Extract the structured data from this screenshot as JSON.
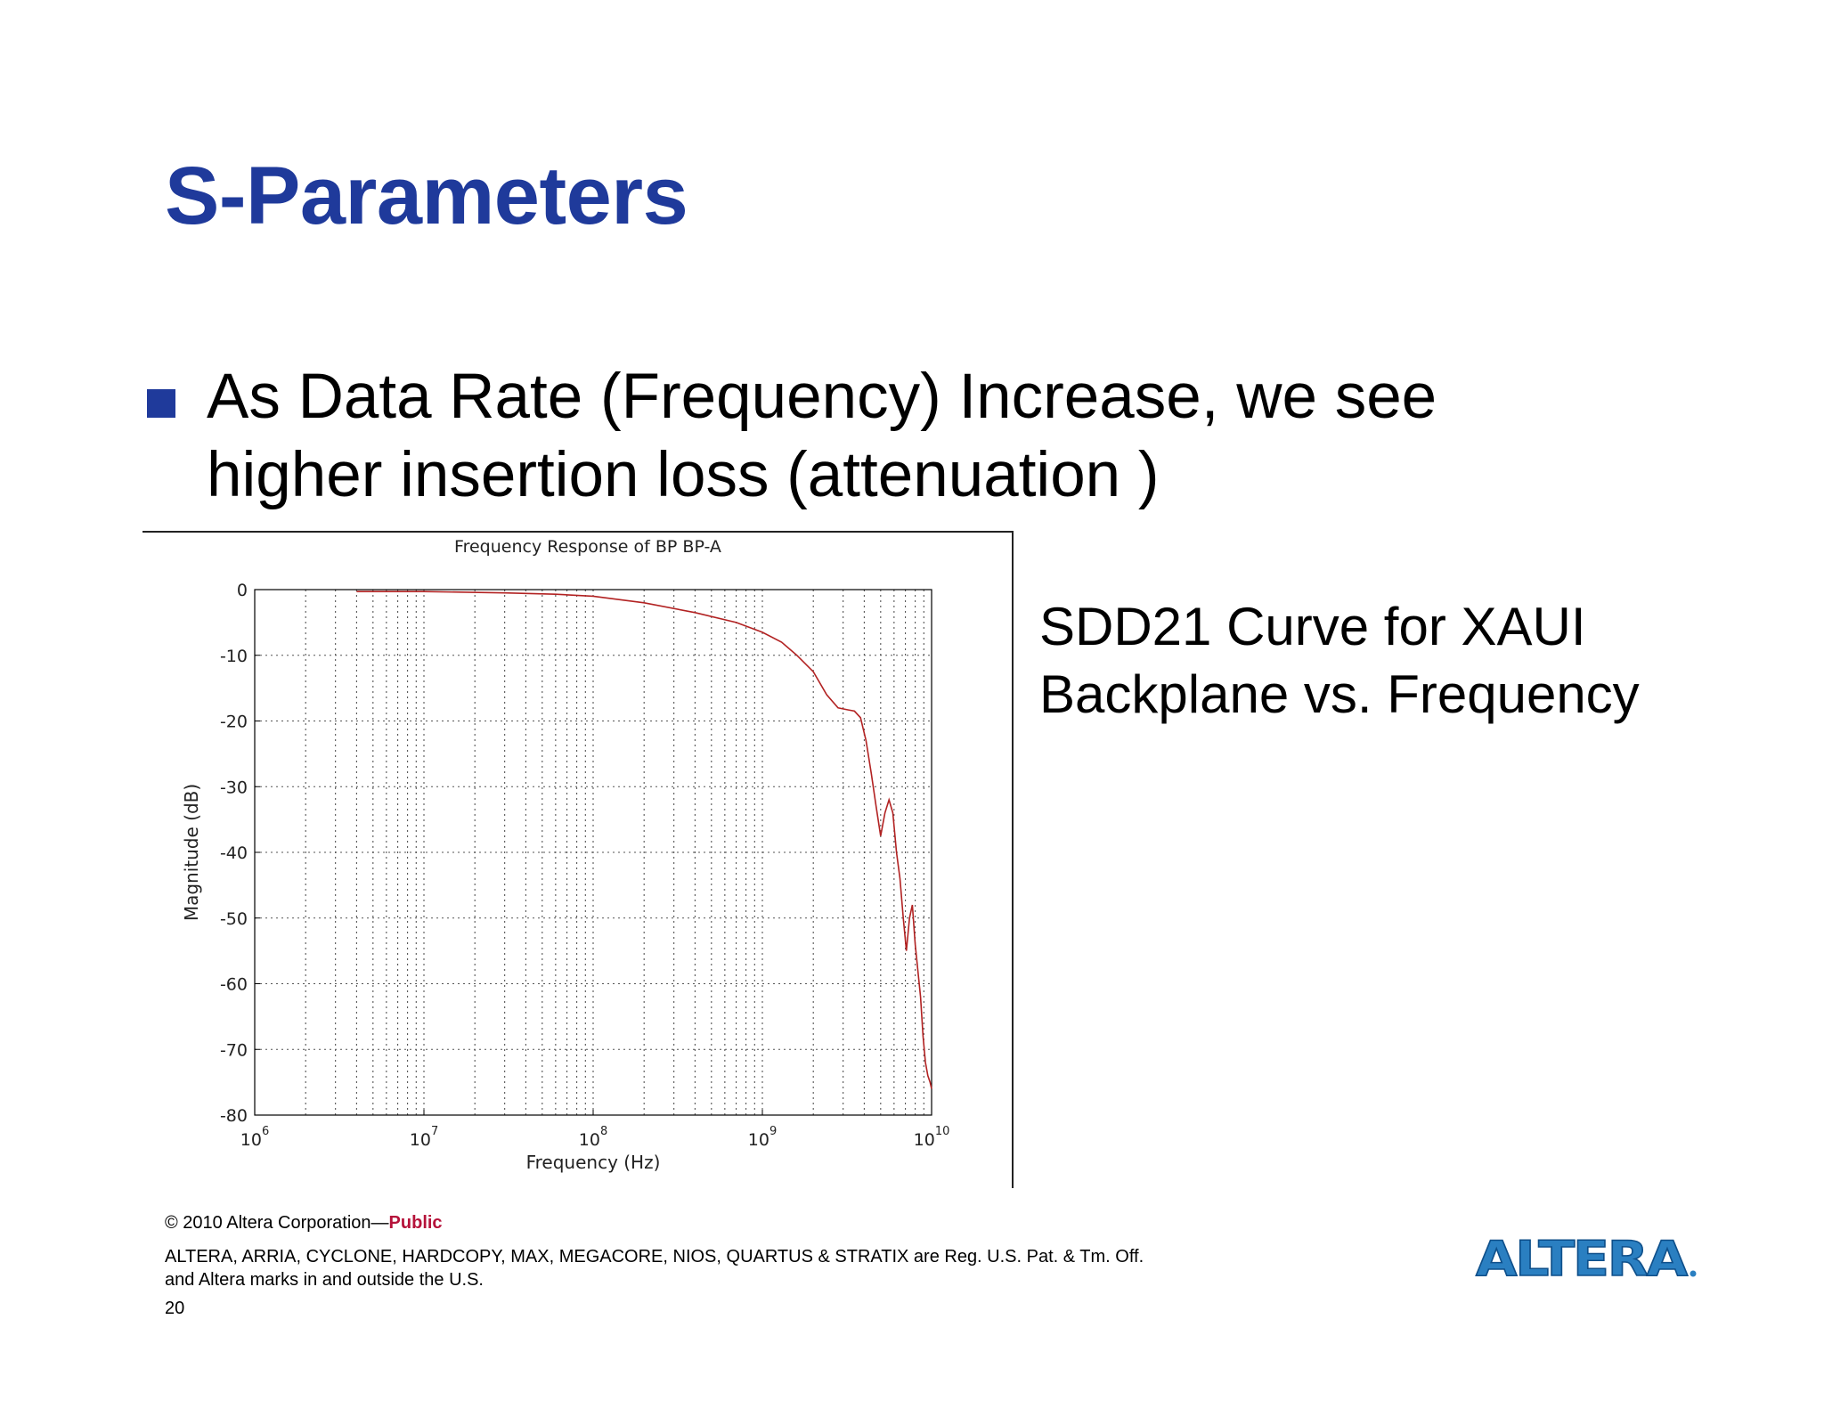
{
  "slide": {
    "title": "S-Parameters",
    "bullet_line1": "As Data Rate (Frequency) Increase, we see",
    "bullet_line2": "higher insertion loss (attenuation )",
    "caption_line1": "SDD21 Curve for XAUI",
    "caption_line2": "Backplane vs. Frequency"
  },
  "footer": {
    "copyright": "© 2010 Altera Corporation—",
    "public_label": "Public",
    "trademark_line1": "ALTERA, ARRIA, CYCLONE, HARDCOPY, MAX, MEGACORE, NIOS, QUARTUS & STRATIX are Reg. U.S. Pat. & Tm. Off.",
    "trademark_line2": "and Altera marks in and outside the U.S.",
    "page_number": "20"
  },
  "logo": {
    "text": "ALTERA",
    "color": "#2a7fc1"
  },
  "chart_data": {
    "type": "line",
    "title": "Frequency Response of BP BP-A",
    "xlabel": "Frequency (Hz)",
    "ylabel": "Magnitude (dB)",
    "x_scale": "log",
    "xlim": [
      1000000,
      10000000000
    ],
    "ylim": [
      -80,
      0
    ],
    "x_ticks": [
      {
        "base": "10",
        "exp": "6",
        "value": 1000000
      },
      {
        "base": "10",
        "exp": "7",
        "value": 10000000
      },
      {
        "base": "10",
        "exp": "8",
        "value": 100000000
      },
      {
        "base": "10",
        "exp": "9",
        "value": 1000000000
      },
      {
        "base": "10",
        "exp": "10",
        "value": 10000000000
      }
    ],
    "y_ticks": [
      "0",
      "-10",
      "-20",
      "-30",
      "-40",
      "-50",
      "-60",
      "-70",
      "-80"
    ],
    "grid": true,
    "line_color": "#b22222",
    "series": [
      {
        "x": [
          4000000,
          10000000,
          30000000,
          60000000,
          100000000,
          200000000,
          400000000,
          700000000,
          1000000000,
          1300000000,
          1600000000,
          2000000000,
          2400000000,
          2800000000,
          3200000000,
          3500000000,
          3800000000,
          4100000000,
          4400000000,
          4700000000,
          5000000000,
          5300000000,
          5600000000,
          5900000000,
          6200000000,
          6500000000,
          6800000000,
          7100000000,
          7400000000,
          7700000000,
          8000000000,
          8300000000,
          8600000000,
          8900000000,
          9200000000,
          9500000000,
          9800000000,
          10000000000
        ],
        "y": [
          -0.3,
          -0.3,
          -0.5,
          -0.7,
          -1,
          -2,
          -3.5,
          -5,
          -6.5,
          -8,
          -10,
          -12.5,
          -16,
          -18,
          -18.3,
          -18.5,
          -19.5,
          -23,
          -28,
          -33,
          -37.5,
          -34,
          -32,
          -34,
          -40,
          -44,
          -50,
          -55,
          -50,
          -48,
          -54,
          -58,
          -62,
          -68,
          -72,
          -74,
          -75,
          -76
        ]
      }
    ]
  }
}
